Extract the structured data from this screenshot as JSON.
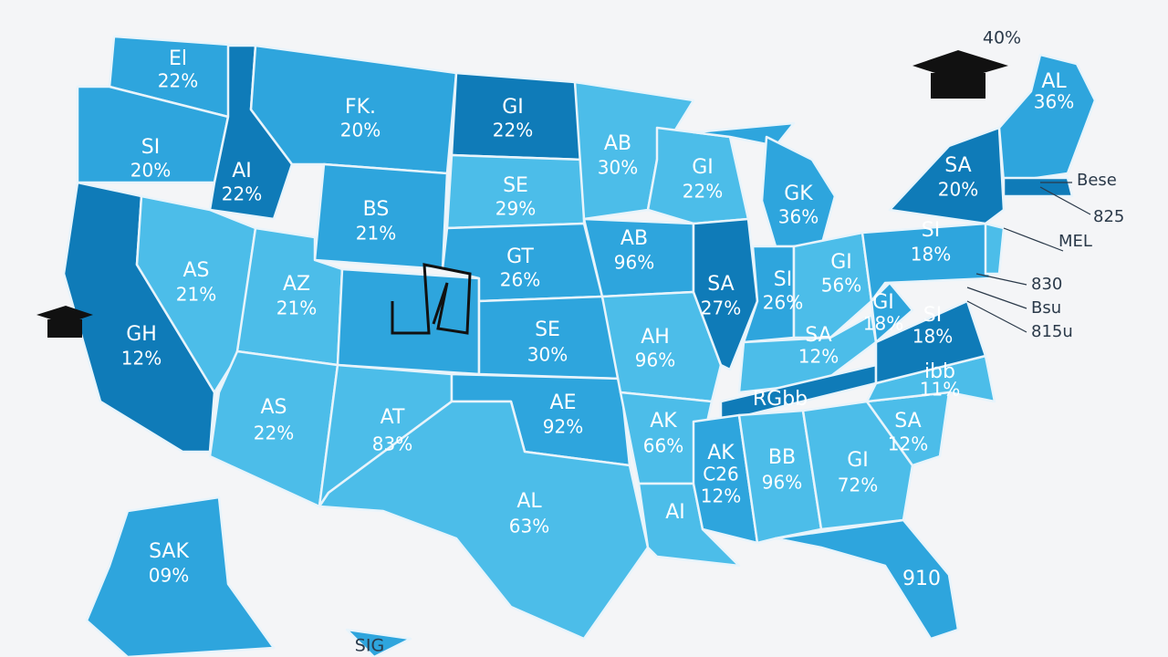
{
  "map": {
    "states": [
      {
        "code": "El",
        "value": "22%"
      },
      {
        "code": "FK.",
        "value": "20%"
      },
      {
        "code": "GI",
        "value": "22%"
      },
      {
        "code": "SI",
        "value": "20%"
      },
      {
        "code": "AI",
        "value": "22%"
      },
      {
        "code": "BS",
        "value": "21%"
      },
      {
        "code": "SE",
        "value": "29%"
      },
      {
        "code": "AB",
        "value": "30%"
      },
      {
        "code": "GI",
        "value": "22%"
      },
      {
        "code": "GK",
        "value": "36%"
      },
      {
        "code": "SA",
        "value": "20%"
      },
      {
        "code": "AS",
        "value": "21%"
      },
      {
        "code": "AZ",
        "value": "21%"
      },
      {
        "code": "GT",
        "value": "26%"
      },
      {
        "code": "AB",
        "value": "96%"
      },
      {
        "code": "SA",
        "value": "27%"
      },
      {
        "code": "SI",
        "value": "26%"
      },
      {
        "code": "GI",
        "value": "56%"
      },
      {
        "code": "SI",
        "value": "18%"
      },
      {
        "code": "GH",
        "value": "12%"
      },
      {
        "code": "SE",
        "value": "30%"
      },
      {
        "code": "AH",
        "value": "96%"
      },
      {
        "code": "SA",
        "value": "12%"
      },
      {
        "code": "GI",
        "value": "18%"
      },
      {
        "code": "SI",
        "value": "18%"
      },
      {
        "code": "ibb",
        "value": "11%"
      },
      {
        "code": "AS",
        "value": "22%"
      },
      {
        "code": "AT",
        "value": "83%"
      },
      {
        "code": "AE",
        "value": "92%"
      },
      {
        "code": "AK",
        "value": "66%"
      },
      {
        "code": "AK",
        "value": "12%"
      },
      {
        "code": "BB",
        "value": "96%"
      },
      {
        "code": "GI",
        "value": "72%"
      },
      {
        "code": "SA",
        "value": "12%"
      },
      {
        "code": "AL",
        "value": "63%"
      },
      {
        "code": "SAK",
        "value": "09%"
      },
      {
        "code": "AL",
        "value": "36%"
      }
    ],
    "single_labels": [
      "RGbb",
      "C26",
      "AI",
      "910",
      "SIG",
      "40%"
    ],
    "side_notes": [
      "Bese",
      "825",
      "MEL",
      "830",
      "Bsu",
      "815u"
    ]
  }
}
